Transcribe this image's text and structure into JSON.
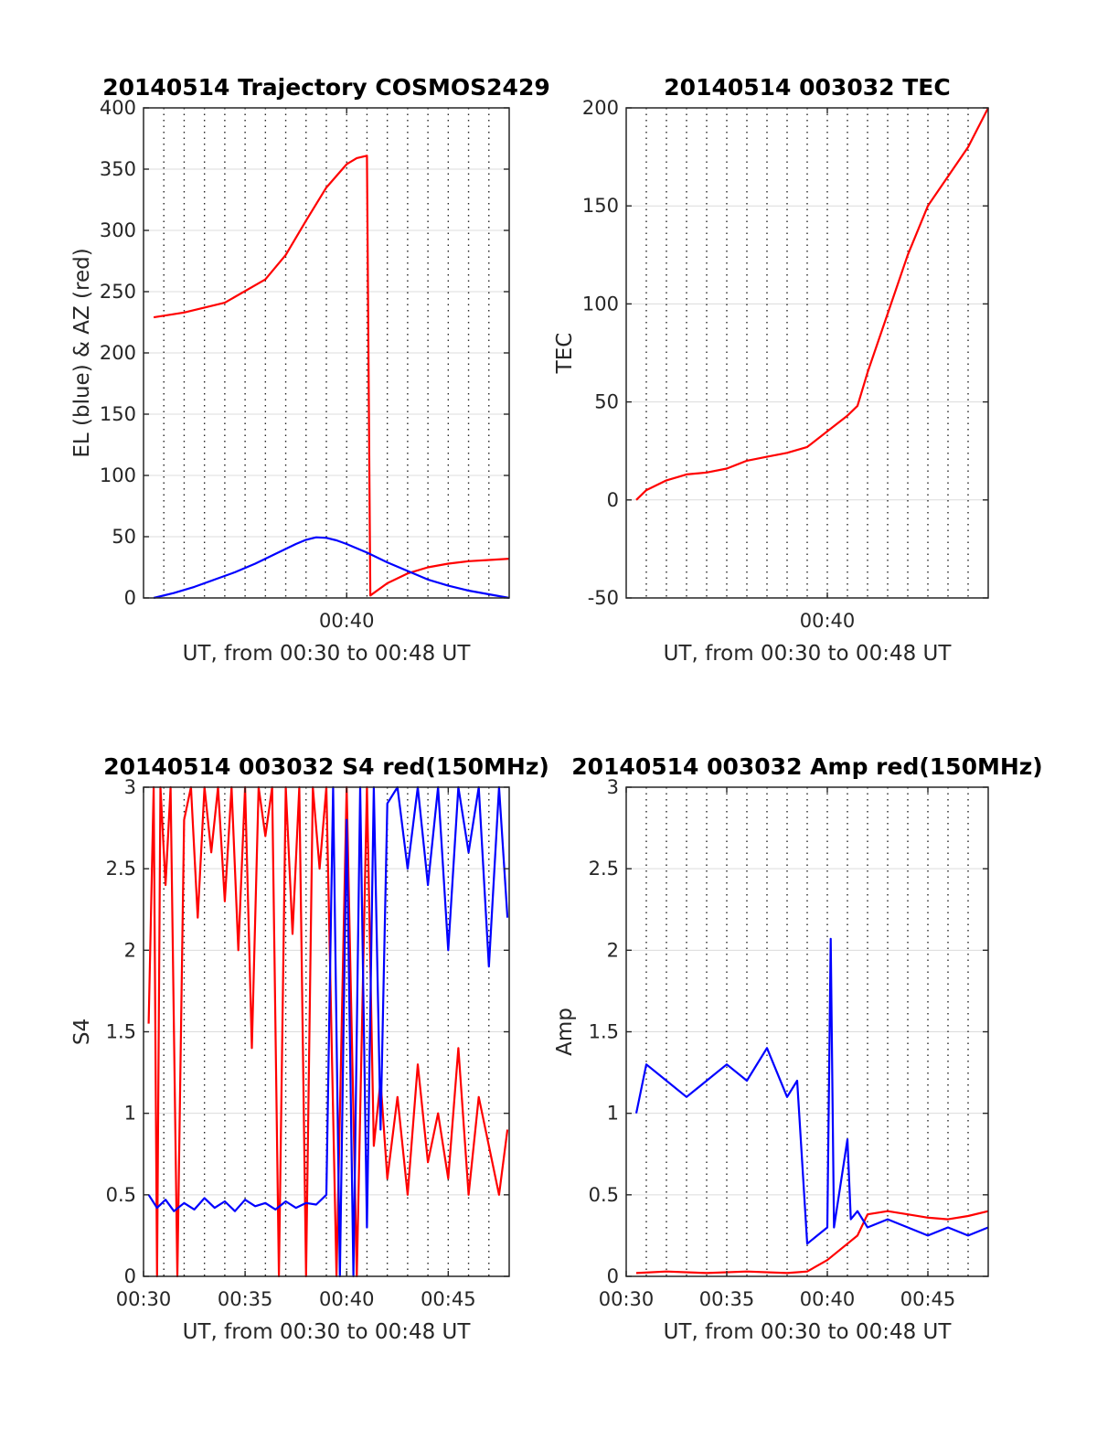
{
  "chart_data": [
    {
      "type": "line",
      "title": "20140514 Trajectory COSMOS2429",
      "xlabel": "UT, from 00:30 to 00:48 UT",
      "ylabel": "EL (blue) & AZ (red)",
      "xlim": [
        "00:30",
        "00:48"
      ],
      "ylim": [
        0,
        400
      ],
      "yticks": [
        0,
        50,
        100,
        150,
        200,
        250,
        300,
        350,
        400
      ],
      "xtick_labels": [
        "00:40"
      ],
      "grid": true,
      "series": [
        {
          "color": "#ff0000",
          "x": [
            "00:30:30",
            "00:32:00",
            "00:34:00",
            "00:36:00",
            "00:37:00",
            "00:38:00",
            "00:39:00",
            "00:40:00",
            "00:40:30",
            "00:41:00",
            "00:41:10",
            "00:42:00",
            "00:43:00",
            "00:44:00",
            "00:45:00",
            "00:46:00",
            "00:47:00",
            "00:48:00"
          ],
          "values": [
            229,
            233,
            241,
            260,
            280,
            308,
            335,
            354,
            359,
            361,
            2,
            12,
            20,
            25,
            28,
            30,
            31,
            32
          ]
        },
        {
          "color": "#0000ff",
          "x": [
            "00:30:30",
            "00:31:30",
            "00:32:30",
            "00:33:30",
            "00:34:30",
            "00:35:30",
            "00:36:30",
            "00:37:30",
            "00:38:00",
            "00:38:30",
            "00:39:00",
            "00:39:30",
            "00:40:00",
            "00:41:00",
            "00:42:00",
            "00:43:00",
            "00:44:00",
            "00:45:00",
            "00:46:00",
            "00:47:00",
            "00:48:00"
          ],
          "values": [
            0,
            4,
            9,
            15,
            21,
            28,
            36,
            44,
            47.5,
            49.5,
            49,
            47,
            44,
            37,
            29,
            22,
            15,
            10,
            6,
            3,
            0
          ]
        }
      ]
    },
    {
      "type": "line",
      "title": "20140514 003032 TEC",
      "xlabel": "UT, from 00:30 to 00:48 UT",
      "ylabel": "TEC",
      "xlim": [
        "00:30",
        "00:48"
      ],
      "ylim": [
        -50,
        200
      ],
      "yticks": [
        -50,
        0,
        50,
        100,
        150,
        200
      ],
      "xtick_labels": [
        "00:40"
      ],
      "grid": true,
      "series": [
        {
          "color": "#ff0000",
          "x": [
            "00:30:30",
            "00:31:00",
            "00:32:00",
            "00:33:00",
            "00:34:00",
            "00:35:00",
            "00:36:00",
            "00:37:00",
            "00:38:00",
            "00:39:00",
            "00:40:00",
            "00:41:00",
            "00:41:30",
            "00:42:00",
            "00:43:00",
            "00:44:00",
            "00:45:00",
            "00:46:00",
            "00:47:00",
            "00:48:00"
          ],
          "values": [
            0,
            5,
            10,
            13,
            14,
            16,
            20,
            22,
            24,
            27,
            35,
            43,
            48,
            65,
            95,
            125,
            150,
            165,
            180,
            200
          ]
        }
      ]
    },
    {
      "type": "line",
      "title": "20140514 003032 S4 red(150MHz)",
      "xlabel": "UT, from 00:30 to 00:48 UT",
      "ylabel": "S4",
      "xlim": [
        "00:30",
        "00:48"
      ],
      "ylim": [
        0,
        3
      ],
      "yticks": [
        0,
        0.5,
        1,
        1.5,
        2,
        2.5,
        3
      ],
      "xtick_labels": [
        "00:30",
        "00:35",
        "00:40",
        "00:45"
      ],
      "grid": true,
      "series": [
        {
          "color": "#ff0000",
          "x": [
            "00:30:15",
            "00:30:30",
            "00:30:40",
            "00:30:50",
            "00:31:05",
            "00:31:20",
            "00:31:40",
            "00:32:00",
            "00:32:20",
            "00:32:40",
            "00:33:00",
            "00:33:20",
            "00:33:40",
            "00:34:00",
            "00:34:20",
            "00:34:40",
            "00:35:00",
            "00:35:20",
            "00:35:40",
            "00:36:00",
            "00:36:20",
            "00:36:40",
            "00:37:00",
            "00:37:20",
            "00:37:40",
            "00:38:00",
            "00:38:20",
            "00:38:40",
            "00:39:00",
            "00:39:30",
            "00:40:00",
            "00:40:30",
            "00:41:00",
            "00:41:20",
            "00:41:40",
            "00:42:00",
            "00:42:30",
            "00:43:00",
            "00:43:30",
            "00:44:00",
            "00:44:30",
            "00:45:00",
            "00:45:30",
            "00:46:00",
            "00:46:30",
            "00:47:00",
            "00:47:30",
            "00:47:55"
          ],
          "values": [
            1.55,
            3,
            0,
            3,
            2.4,
            3,
            0,
            2.8,
            3,
            2.2,
            3,
            2.6,
            3,
            2.3,
            3,
            2.0,
            3,
            1.4,
            3,
            2.7,
            3,
            0,
            3,
            2.1,
            3,
            0,
            3,
            2.5,
            3,
            0,
            3,
            0,
            3,
            0.8,
            1.2,
            0.6,
            1.1,
            0.5,
            1.3,
            0.7,
            1.0,
            0.6,
            1.4,
            0.5,
            1.1,
            0.8,
            0.5,
            0.9
          ]
        },
        {
          "color": "#0000ff",
          "x": [
            "00:30:15",
            "00:30:40",
            "00:31:05",
            "00:31:30",
            "00:32:00",
            "00:32:30",
            "00:33:00",
            "00:33:30",
            "00:34:00",
            "00:34:30",
            "00:35:00",
            "00:35:30",
            "00:36:00",
            "00:36:30",
            "00:37:00",
            "00:37:30",
            "00:38:00",
            "00:38:30",
            "00:39:00",
            "00:39:20",
            "00:39:40",
            "00:40:00",
            "00:40:20",
            "00:40:40",
            "00:41:00",
            "00:41:20",
            "00:41:40",
            "00:42:00",
            "00:42:30",
            "00:43:00",
            "00:43:30",
            "00:44:00",
            "00:44:30",
            "00:45:00",
            "00:45:30",
            "00:46:00",
            "00:46:30",
            "00:47:00",
            "00:47:30",
            "00:47:55"
          ],
          "values": [
            0.5,
            0.42,
            0.47,
            0.4,
            0.45,
            0.41,
            0.48,
            0.42,
            0.46,
            0.4,
            0.47,
            0.43,
            0.45,
            0.41,
            0.46,
            0.42,
            0.45,
            0.44,
            0.5,
            3,
            0,
            2.8,
            0,
            3,
            0.3,
            3,
            0.9,
            2.9,
            3,
            2.5,
            3,
            2.4,
            3,
            2.0,
            3,
            2.6,
            3,
            1.9,
            3,
            2.2
          ]
        }
      ]
    },
    {
      "type": "line",
      "title": "20140514 003032 Amp red(150MHz)",
      "xlabel": "UT, from 00:30 to 00:48 UT",
      "ylabel": "Amp",
      "xlim": [
        "00:30",
        "00:48"
      ],
      "ylim": [
        0,
        3
      ],
      "yticks": [
        0,
        0.5,
        1,
        1.5,
        2,
        2.5,
        3
      ],
      "xtick_labels": [
        "00:30",
        "00:35",
        "00:40",
        "00:45"
      ],
      "grid": true,
      "series": [
        {
          "color": "#ff0000",
          "x": [
            "00:30:30",
            "00:32:00",
            "00:34:00",
            "00:36:00",
            "00:38:00",
            "00:39:00",
            "00:40:00",
            "00:41:00",
            "00:41:30",
            "00:42:00",
            "00:43:00",
            "00:44:00",
            "00:45:00",
            "00:46:00",
            "00:47:00",
            "00:48:00"
          ],
          "values": [
            0.02,
            0.03,
            0.02,
            0.03,
            0.02,
            0.03,
            0.1,
            0.2,
            0.25,
            0.38,
            0.4,
            0.38,
            0.36,
            0.35,
            0.37,
            0.4
          ]
        },
        {
          "color": "#0000ff",
          "x": [
            "00:30:30",
            "00:31:00",
            "00:32:00",
            "00:33:00",
            "00:34:00",
            "00:35:00",
            "00:36:00",
            "00:37:00",
            "00:38:00",
            "00:38:30",
            "00:39:00",
            "00:39:30",
            "00:40:00",
            "00:40:10",
            "00:40:20",
            "00:41:00",
            "00:41:10",
            "00:41:30",
            "00:42:00",
            "00:43:00",
            "00:44:00",
            "00:45:00",
            "00:46:00",
            "00:47:00",
            "00:48:00"
          ],
          "values": [
            1.0,
            1.3,
            1.2,
            1.1,
            1.2,
            1.3,
            1.2,
            1.4,
            1.1,
            1.2,
            0.2,
            0.25,
            0.3,
            2.07,
            0.3,
            0.84,
            0.35,
            0.4,
            0.3,
            0.35,
            0.3,
            0.25,
            0.3,
            0.25,
            0.3
          ]
        }
      ]
    }
  ]
}
